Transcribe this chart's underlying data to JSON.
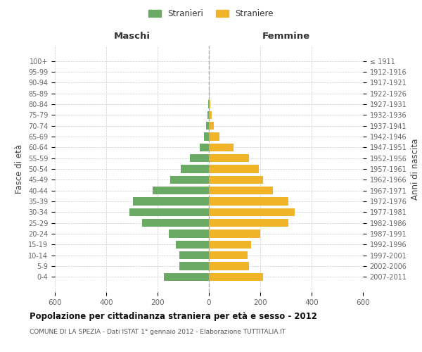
{
  "age_groups": [
    "100+",
    "95-99",
    "90-94",
    "85-89",
    "80-84",
    "75-79",
    "70-74",
    "65-69",
    "60-64",
    "55-59",
    "50-54",
    "45-49",
    "40-44",
    "35-39",
    "30-34",
    "25-29",
    "20-24",
    "15-19",
    "10-14",
    "5-9",
    "0-4"
  ],
  "birth_years": [
    "≤ 1911",
    "1912-1916",
    "1917-1921",
    "1922-1926",
    "1927-1931",
    "1932-1936",
    "1937-1941",
    "1942-1946",
    "1947-1951",
    "1952-1956",
    "1957-1961",
    "1962-1966",
    "1967-1971",
    "1972-1976",
    "1977-1981",
    "1982-1986",
    "1987-1991",
    "1992-1996",
    "1997-2001",
    "2002-2006",
    "2007-2011"
  ],
  "maschi": [
    0,
    0,
    0,
    0,
    2,
    5,
    10,
    18,
    35,
    75,
    110,
    150,
    220,
    295,
    310,
    260,
    155,
    130,
    115,
    115,
    175
  ],
  "femmine": [
    0,
    0,
    0,
    2,
    5,
    12,
    20,
    40,
    95,
    155,
    195,
    210,
    250,
    310,
    335,
    310,
    200,
    165,
    150,
    155,
    210
  ],
  "maschi_color": "#6aaa64",
  "femmine_color": "#f0b429",
  "title": "Popolazione per cittadinanza straniera per età e sesso - 2012",
  "subtitle": "COMUNE DI LA SPEZIA - Dati ISTAT 1° gennaio 2012 - Elaborazione TUTTITALIA.IT",
  "xlabel_left": "Maschi",
  "xlabel_right": "Femmine",
  "ylabel_left": "Fasce di età",
  "ylabel_right": "Anni di nascita",
  "xlim": 600,
  "legend_stranieri": "Stranieri",
  "legend_straniere": "Straniere",
  "bg_color": "#ffffff",
  "grid_color": "#cccccc"
}
